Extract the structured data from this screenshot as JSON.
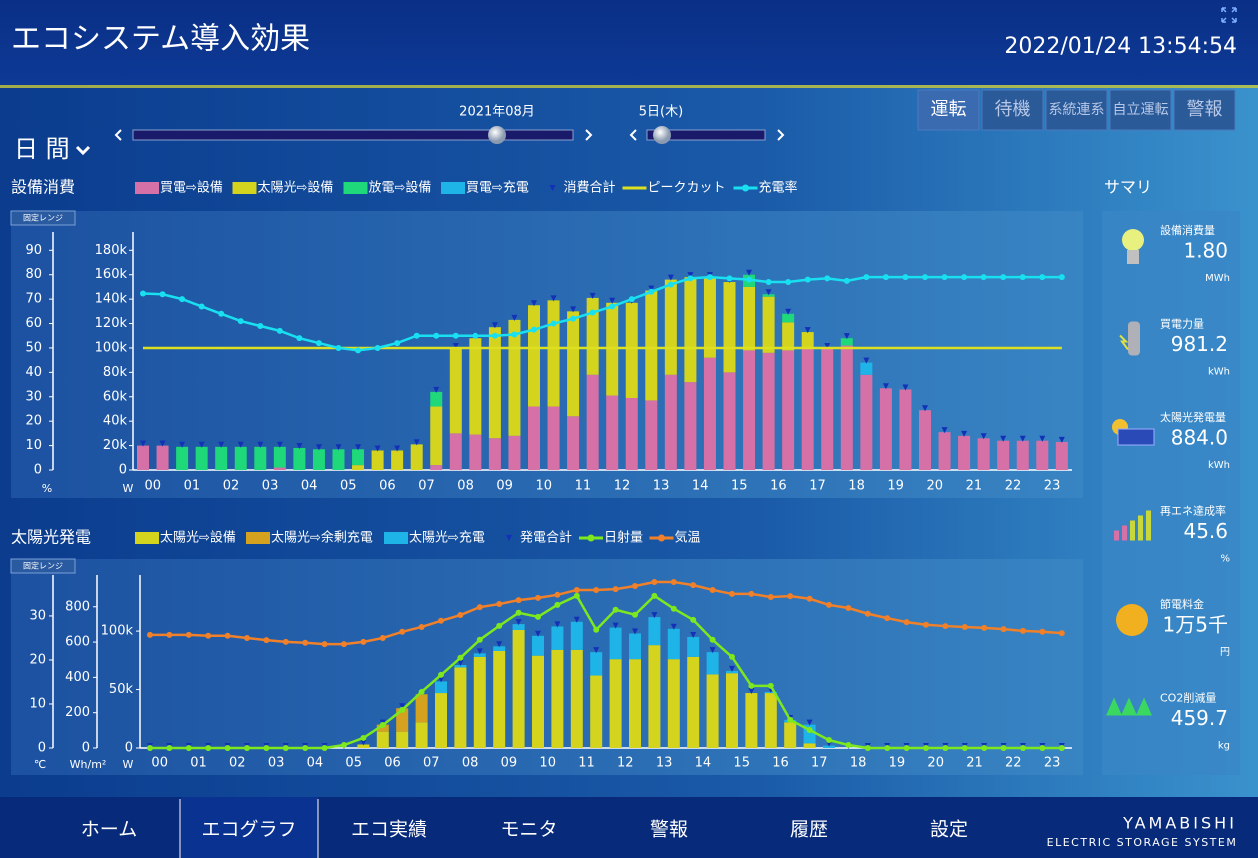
{
  "header": {
    "title": "エコシステム導入効果",
    "datetime": "2022/01/24 13:54:54"
  },
  "controls": {
    "period": "日 間",
    "month": "2021年08月",
    "day": "5日(木)"
  },
  "modes": [
    "運転",
    "待機",
    "系統連系",
    "自立運転",
    "警報"
  ],
  "range_button": "固定レンジ",
  "summary": {
    "title": "サマリ",
    "items": [
      {
        "label": "設備消費量",
        "value": "1.80",
        "unit": "MWh"
      },
      {
        "label": "買電力量",
        "value": "981.2",
        "unit": "kWh"
      },
      {
        "label": "太陽光発電量",
        "value": "884.0",
        "unit": "kWh"
      },
      {
        "label": "再エネ達成率",
        "value": "45.6",
        "unit": "%"
      },
      {
        "label": "節電料金",
        "value": "1万5千",
        "unit": "円"
      },
      {
        "label": "CO2削減量",
        "value": "459.7",
        "unit": "kg"
      }
    ]
  },
  "nav": [
    "ホーム",
    "エコグラフ",
    "エコ実績",
    "モニタ",
    "警報",
    "履歴",
    "設定"
  ],
  "brand": {
    "name": "YAMABISHI",
    "tagline": "ELECTRIC STORAGE SYSTEM"
  },
  "chart_data": [
    {
      "type": "bar",
      "stacked": true,
      "title": "設備消費",
      "categories": [
        "00",
        null,
        "01",
        null,
        "02",
        null,
        "03",
        null,
        "04",
        null,
        "05",
        null,
        "06",
        null,
        "07",
        null,
        "08",
        null,
        "09",
        null,
        "10",
        null,
        "11",
        null,
        "12",
        null,
        "13",
        null,
        "14",
        null,
        "15",
        null,
        "16",
        null,
        "17",
        null,
        "18",
        null,
        "19",
        null,
        "20",
        null,
        "21",
        null,
        "22",
        null,
        "23",
        null
      ],
      "ylabel": "W",
      "ylim": [
        0,
        195000
      ],
      "yticks": [
        0,
        {
          "value": 20000,
          "label": "20k"
        },
        {
          "value": 40000,
          "label": "40k"
        },
        {
          "value": 60000,
          "label": "60k"
        },
        {
          "value": 80000,
          "label": "80k"
        },
        {
          "value": 100000,
          "label": "100k"
        },
        {
          "value": 120000,
          "label": "120k"
        },
        {
          "value": 140000,
          "label": "140k"
        },
        {
          "value": 160000,
          "label": "160k"
        },
        {
          "value": 180000,
          "label": "180k"
        }
      ],
      "y2label": "%",
      "y2lim": [
        0,
        97.5
      ],
      "y2ticks": [
        0,
        10,
        20,
        30,
        40,
        50,
        60,
        70,
        80,
        90
      ],
      "series": [
        {
          "name": "買電⇨設備",
          "kind": "bar",
          "color": "#d671a8",
          "values": [
            20000,
            20000,
            0,
            0,
            0,
            0,
            0,
            2000,
            0,
            0,
            0,
            0,
            0,
            0,
            0,
            4000,
            30000,
            29000,
            26000,
            28000,
            52000,
            52000,
            44000,
            78000,
            61000,
            59000,
            57000,
            78000,
            72000,
            92000,
            80000,
            98000,
            96000,
            98000,
            100000,
            100000,
            102000,
            78000,
            67000,
            66000,
            49000,
            31000,
            28000,
            26000,
            24000,
            24000,
            24000,
            23000
          ]
        },
        {
          "name": "太陽光⇨設備",
          "kind": "bar",
          "color": "#d4d41e",
          "values": [
            0,
            0,
            0,
            0,
            0,
            0,
            0,
            0,
            0,
            0,
            0,
            4000,
            16000,
            16000,
            21000,
            48000,
            70000,
            79000,
            91000,
            95000,
            83000,
            87000,
            86000,
            63000,
            76000,
            78000,
            90000,
            78000,
            86000,
            66000,
            74000,
            52000,
            46000,
            23000,
            13000,
            0,
            0,
            0,
            0,
            0,
            0,
            0,
            0,
            0,
            0,
            0,
            0,
            0
          ]
        },
        {
          "name": "放電⇨設備",
          "kind": "bar",
          "color": "#1fd87a",
          "values": [
            0,
            0,
            19000,
            19000,
            19000,
            19000,
            19000,
            17000,
            18000,
            17000,
            17000,
            13000,
            0,
            0,
            0,
            12000,
            0,
            0,
            0,
            0,
            0,
            0,
            0,
            0,
            0,
            0,
            0,
            0,
            0,
            0,
            0,
            10000,
            2000,
            7000,
            0,
            0,
            6000,
            0,
            0,
            0,
            0,
            0,
            0,
            0,
            0,
            0,
            0,
            0
          ]
        },
        {
          "name": "買電⇨充電",
          "kind": "bar",
          "color": "#1fb4e8",
          "values": [
            0,
            0,
            0,
            0,
            0,
            0,
            0,
            0,
            0,
            0,
            0,
            0,
            0,
            0,
            0,
            0,
            0,
            0,
            0,
            0,
            0,
            0,
            0,
            0,
            0,
            0,
            0,
            0,
            0,
            0,
            0,
            0,
            0,
            0,
            0,
            0,
            0,
            10000,
            0,
            0,
            0,
            0,
            0,
            0,
            0,
            0,
            0,
            0
          ]
        },
        {
          "name": "消費合計",
          "kind": "marker",
          "color": "#1230b8",
          "values": [
            20000,
            20000,
            19000,
            19000,
            19000,
            19000,
            19000,
            19000,
            18000,
            17000,
            17000,
            17000,
            16000,
            16000,
            21000,
            64000,
            100000,
            108000,
            117000,
            123000,
            135000,
            139000,
            130000,
            141000,
            137000,
            137000,
            147000,
            156000,
            158000,
            158000,
            154000,
            160000,
            144000,
            128000,
            113000,
            100000,
            108000,
            88000,
            67000,
            66000,
            49000,
            31000,
            28000,
            26000,
            24000,
            24000,
            24000,
            23000
          ]
        },
        {
          "name": "ピークカット",
          "kind": "hline",
          "color": "#dde020",
          "value": 100000
        },
        {
          "name": "充電率",
          "kind": "line",
          "axis": "y2",
          "color": "#19e0f0",
          "values": [
            72.3,
            72,
            70,
            67,
            64,
            61,
            59,
            57,
            54,
            52,
            50,
            49,
            50,
            52,
            55,
            55,
            55,
            55,
            55,
            55.5,
            57.5,
            60,
            62,
            64.5,
            67,
            70,
            73,
            76,
            78.5,
            79,
            78.5,
            78,
            77,
            77,
            78,
            78.5,
            77.5,
            79,
            79,
            79,
            79,
            79,
            79,
            79,
            79,
            79,
            79,
            79
          ]
        }
      ]
    },
    {
      "type": "bar",
      "stacked": true,
      "title": "太陽光発電",
      "categories": [
        "00",
        null,
        "01",
        null,
        "02",
        null,
        "03",
        null,
        "04",
        null,
        "05",
        null,
        "06",
        null,
        "07",
        null,
        "08",
        null,
        "09",
        null,
        "10",
        null,
        "11",
        null,
        "12",
        null,
        "13",
        null,
        "14",
        null,
        "15",
        null,
        "16",
        null,
        "17",
        null,
        "18",
        null,
        "19",
        null,
        "20",
        null,
        "21",
        null,
        "22",
        null,
        "23",
        null
      ],
      "ylabel": "W",
      "ylim": [
        0,
        148000
      ],
      "yticks": [
        0,
        {
          "value": 50000,
          "label": "50k"
        },
        {
          "value": 100000,
          "label": "100k"
        }
      ],
      "y2label": "Wh/m²",
      "y2lim": [
        0,
        980
      ],
      "y2ticks": [
        0,
        200,
        400,
        600,
        800
      ],
      "y3label": "℃",
      "y3lim": [
        0,
        39.3
      ],
      "y3ticks": [
        0,
        10,
        20,
        30
      ],
      "series": [
        {
          "name": "太陽光⇨設備",
          "kind": "bar",
          "color": "#d4d41e",
          "values": [
            0,
            0,
            0,
            0,
            0,
            0,
            0,
            0,
            0,
            0,
            0,
            3000,
            14000,
            14000,
            22000,
            47000,
            69000,
            78000,
            83000,
            101000,
            79000,
            84000,
            84000,
            62000,
            76000,
            76000,
            88000,
            76000,
            78000,
            63000,
            64000,
            47000,
            47000,
            22000,
            4000,
            0,
            0,
            0,
            0,
            0,
            0,
            0,
            0,
            0,
            0,
            0,
            0,
            0
          ]
        },
        {
          "name": "太陽光⇨余剰充電",
          "kind": "bar",
          "color": "#d4a21e",
          "values": [
            0,
            0,
            0,
            0,
            0,
            0,
            0,
            0,
            0,
            0,
            0,
            0,
            6000,
            20000,
            24000,
            0,
            0,
            0,
            0,
            0,
            0,
            0,
            0,
            0,
            0,
            0,
            0,
            0,
            0,
            0,
            0,
            0,
            0,
            0,
            0,
            0,
            0,
            0,
            0,
            0,
            0,
            0,
            0,
            0,
            0,
            0,
            0,
            0
          ]
        },
        {
          "name": "太陽光⇨充電",
          "kind": "bar",
          "color": "#1fb4e8",
          "values": [
            0,
            0,
            0,
            0,
            0,
            0,
            0,
            0,
            0,
            0,
            0,
            0,
            0,
            0,
            0,
            10000,
            2000,
            3000,
            4000,
            5000,
            17000,
            20000,
            24000,
            20000,
            27000,
            22000,
            24000,
            26000,
            17000,
            19000,
            2000,
            0,
            1000,
            2000,
            16000,
            2000,
            0,
            0,
            0,
            0,
            0,
            0,
            0,
            0,
            0,
            0,
            0,
            0
          ]
        },
        {
          "name": "発電合計",
          "kind": "marker",
          "color": "#1230b8",
          "values": [
            0,
            0,
            0,
            0,
            0,
            0,
            0,
            0,
            0,
            0,
            0,
            3000,
            20000,
            34000,
            46000,
            57000,
            71000,
            81000,
            87000,
            106000,
            96000,
            104000,
            108000,
            82000,
            103000,
            98000,
            112000,
            102000,
            95000,
            82000,
            66000,
            47000,
            48000,
            24000,
            20000,
            2000,
            0,
            0,
            0,
            0,
            0,
            0,
            0,
            0,
            0,
            0,
            0,
            0
          ]
        },
        {
          "name": "日射量",
          "kind": "line",
          "axis": "y2",
          "color": "#7de81e",
          "values": [
            0,
            0,
            0,
            0,
            0,
            0,
            0,
            0,
            0,
            0,
            17,
            57,
            130,
            216,
            318,
            414,
            511,
            613,
            692,
            766,
            743,
            811,
            862,
            670,
            783,
            755,
            862,
            789,
            726,
            613,
            516,
            352,
            352,
            159,
            102,
            45,
            17,
            0,
            0,
            0,
            0,
            0,
            0,
            0,
            0,
            0,
            0,
            0
          ]
        },
        {
          "name": "気温",
          "kind": "line",
          "axis": "y3",
          "color": "#f0802a",
          "values": [
            25.7,
            25.7,
            25.7,
            25.5,
            25.5,
            25,
            24.5,
            24.1,
            23.9,
            23.6,
            23.6,
            24.1,
            25,
            26.4,
            27.5,
            28.9,
            30.2,
            32,
            32.7,
            33.6,
            34.1,
            34.8,
            35.9,
            35.9,
            36.1,
            36.8,
            37.7,
            37.7,
            37,
            35.9,
            35,
            35,
            34.3,
            34.5,
            33.9,
            32.5,
            31.8,
            30.5,
            29.5,
            28.6,
            28,
            27.7,
            27.5,
            27.3,
            27,
            26.6,
            26.4,
            26.1
          ]
        }
      ]
    }
  ]
}
